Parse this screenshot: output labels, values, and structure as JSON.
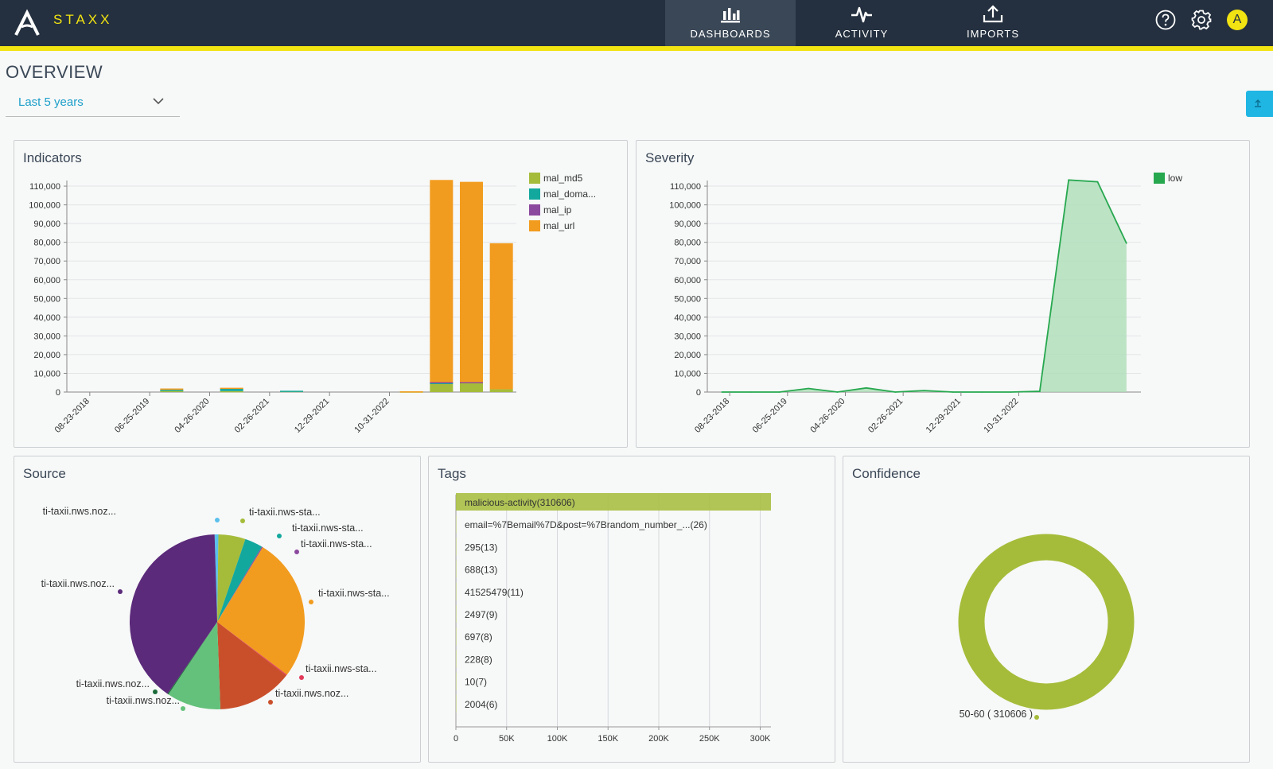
{
  "header": {
    "brand": "STAXX",
    "nav": [
      {
        "label": "DASHBOARDS",
        "icon": "bar-chart-icon",
        "active": true
      },
      {
        "label": "ACTIVITY",
        "icon": "pulse-icon",
        "active": false
      },
      {
        "label": "IMPORTS",
        "icon": "upload-icon",
        "active": false
      }
    ],
    "avatar_letter": "A"
  },
  "page": {
    "title": "OVERVIEW",
    "range": "Last 5 years"
  },
  "colors": {
    "mal_md5": "#a5bc3a",
    "mal_domain": "#13a89e",
    "mal_ip": "#8c4a9e",
    "mal_url": "#f29c1f",
    "low": "#27a84f"
  },
  "panels": {
    "indicators": "Indicators",
    "severity": "Severity",
    "source": "Source",
    "tags": "Tags",
    "confidence": "Confidence"
  },
  "chart_data": [
    {
      "id": "indicators",
      "type": "bar",
      "stacked": true,
      "title": "Indicators",
      "x_tick_labels": [
        "08-23-2018",
        "06-25-2019",
        "04-26-2020",
        "02-26-2021",
        "12-29-2021",
        "10-31-2022"
      ],
      "y_ticks": [
        "0",
        "10,000",
        "20,000",
        "30,000",
        "40,000",
        "50,000",
        "60,000",
        "70,000",
        "80,000",
        "90,000",
        "100,000",
        "110,000"
      ],
      "ylim": [
        0,
        113000
      ],
      "legend": [
        "mal_md5",
        "mal_doma...",
        "mal_ip",
        "mal_url"
      ],
      "legend_position": "top-right",
      "series": [
        {
          "name": "mal_md5",
          "values": [
            0,
            0,
            0,
            800,
            0,
            500,
            0,
            600,
            0,
            0,
            0,
            300,
            4500,
            4700,
            1500
          ]
        },
        {
          "name": "mal_domain",
          "values": [
            0,
            0,
            0,
            400,
            0,
            1500,
            0,
            100,
            0,
            0,
            0,
            0,
            400,
            0,
            0
          ]
        },
        {
          "name": "mal_ip",
          "values": [
            0,
            0,
            0,
            0,
            0,
            0,
            0,
            0,
            0,
            0,
            0,
            0,
            400,
            600,
            0
          ]
        },
        {
          "name": "mal_url",
          "values": [
            0,
            0,
            0,
            700,
            0,
            300,
            0,
            0,
            0,
            0,
            0,
            100,
            108000,
            107000,
            78000
          ]
        }
      ]
    },
    {
      "id": "severity",
      "type": "area",
      "title": "Severity",
      "x_tick_labels": [
        "08-23-2018",
        "06-25-2019",
        "04-26-2020",
        "02-26-2021",
        "12-29-2021",
        "10-31-2022"
      ],
      "y_ticks": [
        "0",
        "10,000",
        "20,000",
        "30,000",
        "40,000",
        "50,000",
        "60,000",
        "70,000",
        "80,000",
        "90,000",
        "100,000",
        "110,000"
      ],
      "ylim": [
        0,
        113000
      ],
      "legend": [
        "low"
      ],
      "legend_position": "top-right",
      "series": [
        {
          "name": "low",
          "values": [
            0,
            0,
            0,
            1900,
            0,
            2200,
            0,
            800,
            0,
            0,
            0,
            400,
            113300,
            112300,
            79500
          ]
        }
      ]
    },
    {
      "id": "source",
      "type": "pie",
      "title": "Source",
      "slices": [
        {
          "label": "ti-taxii.nws.noz...",
          "value": 0.7,
          "color": "#5bc0eb"
        },
        {
          "label": "ti-taxii.nws-sta...",
          "value": 5.0,
          "color": "#a5bc3a"
        },
        {
          "label": "ti-taxii.nws-sta...",
          "value": 3.3,
          "color": "#13a89e"
        },
        {
          "label": "ti-taxii.nws-sta...",
          "value": 0.2,
          "color": "#8c4a9e"
        },
        {
          "label": "ti-taxii.nws-sta...",
          "value": 26.6,
          "color": "#f29c1f"
        },
        {
          "label": "ti-taxii.nws-sta...",
          "value": 0.2,
          "color": "#e23a5a"
        },
        {
          "label": "ti-taxii.nws.noz...",
          "value": 13.9,
          "color": "#c94f2b"
        },
        {
          "label": "ti-taxii.nws.noz...",
          "value": 10.0,
          "color": "#64c17b"
        },
        {
          "label": "ti-taxii.nws.noz...",
          "value": 0.2,
          "color": "#1c6b3a"
        },
        {
          "label": "ti-taxii.nws.noz...",
          "value": 39.9,
          "color": "#5b2a7a"
        }
      ]
    },
    {
      "id": "tags",
      "type": "bar",
      "orientation": "horizontal",
      "title": "Tags",
      "categories": [
        "malicious-activity(310606)",
        "email=%7Bemail%7D&post=%7Brandom_number_...(26)",
        "295(13)",
        "688(13)",
        "41525479(11)",
        "2497(9)",
        "697(8)",
        "228(8)",
        "10(7)",
        "2004(6)"
      ],
      "values": [
        310606,
        26,
        13,
        13,
        11,
        9,
        8,
        8,
        7,
        6
      ],
      "x_tick_labels": [
        "0",
        "50K",
        "100K",
        "150K",
        "200K",
        "250K",
        "300K"
      ],
      "xlim": [
        0,
        310606
      ]
    },
    {
      "id": "confidence",
      "type": "pie",
      "variant": "donut",
      "title": "Confidence",
      "slices": [
        {
          "label": "50-60 ( 310606 )",
          "value": 310606,
          "color": "#a5bc3a"
        }
      ]
    }
  ]
}
